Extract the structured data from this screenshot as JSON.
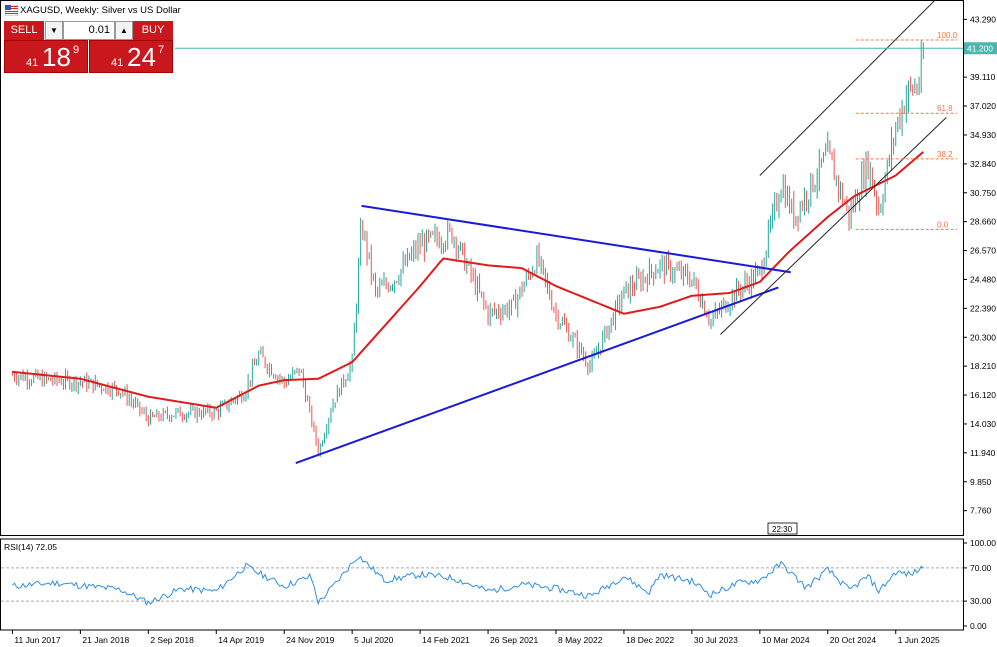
{
  "header": {
    "title": "XAGUSD, Weekly:  Silver vs US Dollar"
  },
  "trade_panel": {
    "sell_label": "SELL",
    "buy_label": "BUY",
    "lot_value": "0.01",
    "sell_price_big": "41",
    "sell_price_main": "18",
    "sell_price_sup": "9",
    "buy_price_big": "41",
    "buy_price_main": "24",
    "buy_price_sup": "7"
  },
  "colors": {
    "bull": "#26a69a",
    "bear": "#ef5350",
    "ma": "#e01b1b",
    "triangle": "#1a1ad8",
    "channel": "#222222",
    "fib": "#f07840",
    "current_price_line": "#4db6ac",
    "rsi": "#2f8fe0",
    "trade_red": "#c8171d"
  },
  "icons": {
    "flag": "flag-icon",
    "dropdown": "chevron-down-icon",
    "up": "chevron-up-icon"
  },
  "chart_data": {
    "type": "line",
    "timeframe": "Weekly",
    "symbol": "XAGUSD",
    "y_ticks": [
      "43.290",
      "41.200",
      "39.110",
      "37.020",
      "34.930",
      "32.840",
      "30.750",
      "28.660",
      "26.570",
      "24.480",
      "22.390",
      "20.300",
      "18.210",
      "16.120",
      "14.030",
      "11.940",
      "9.850",
      "7.760"
    ],
    "ylim": [
      6.0,
      44.4
    ],
    "current_price": "41.200",
    "time_label": "22:30",
    "x_ticks": [
      "11 Jun 2017",
      "21 Jan 2018",
      "2 Sep 2018",
      "14 Apr 2019",
      "24 Nov 2019",
      "5 Jul 2020",
      "14 Feb 2021",
      "26 Sep 2021",
      "8 May 2022",
      "18 Dec 2022",
      "30 Jul 2023",
      "10 Mar 2024",
      "20 Oct 2024",
      "1 Jun 2025"
    ],
    "price_path": [
      [
        "2017-06-11",
        17.6
      ],
      [
        "2017-10-01",
        17.2
      ],
      [
        "2018-01-21",
        17.1
      ],
      [
        "2018-06-01",
        16.5
      ],
      [
        "2018-09-02",
        14.4
      ],
      [
        "2018-12-01",
        14.8
      ],
      [
        "2019-04-14",
        14.9
      ],
      [
        "2019-07-15",
        16.3
      ],
      [
        "2019-09-01",
        19.0
      ],
      [
        "2019-11-24",
        17.0
      ],
      [
        "2020-01-15",
        18.0
      ],
      [
        "2020-03-16",
        12.0
      ],
      [
        "2020-05-01",
        15.5
      ],
      [
        "2020-07-05",
        18.5
      ],
      [
        "2020-08-05",
        28.5
      ],
      [
        "2020-09-20",
        23.5
      ],
      [
        "2020-11-20",
        24.5
      ],
      [
        "2021-02-14",
        27.0
      ],
      [
        "2021-06-01",
        27.8
      ],
      [
        "2021-09-26",
        22.0
      ],
      [
        "2021-12-15",
        22.5
      ],
      [
        "2022-03-07",
        26.0
      ],
      [
        "2022-05-08",
        22.0
      ],
      [
        "2022-08-30",
        18.2
      ],
      [
        "2022-12-18",
        23.5
      ],
      [
        "2023-04-15",
        25.5
      ],
      [
        "2023-07-30",
        24.5
      ],
      [
        "2023-10-01",
        21.5
      ],
      [
        "2023-12-20",
        23.5
      ],
      [
        "2024-03-10",
        25.0
      ],
      [
        "2024-05-20",
        31.5
      ],
      [
        "2024-07-01",
        29.0
      ],
      [
        "2024-10-20",
        33.5
      ],
      [
        "2024-12-30",
        29.0
      ],
      [
        "2025-03-01",
        33.0
      ],
      [
        "2025-04-07",
        29.5
      ],
      [
        "2025-06-01",
        35.5
      ],
      [
        "2025-07-10",
        38.0
      ],
      [
        "2025-08-15",
        38.5
      ],
      [
        "2025-09-05",
        41.2
      ]
    ],
    "ma_path": [
      [
        "2017-06-11",
        17.8
      ],
      [
        "2018-01-21",
        17.3
      ],
      [
        "2018-09-02",
        16.0
      ],
      [
        "2019-04-14",
        15.2
      ],
      [
        "2019-09-01",
        16.8
      ],
      [
        "2019-11-24",
        17.2
      ],
      [
        "2020-03-16",
        17.3
      ],
      [
        "2020-07-05",
        18.5
      ],
      [
        "2020-10-15",
        21.0
      ],
      [
        "2021-02-14",
        24.0
      ],
      [
        "2021-05-01",
        26.0
      ],
      [
        "2021-09-26",
        25.5
      ],
      [
        "2022-01-15",
        25.3
      ],
      [
        "2022-05-08",
        24.0
      ],
      [
        "2022-12-18",
        22.0
      ],
      [
        "2023-04-15",
        22.5
      ],
      [
        "2023-07-30",
        23.3
      ],
      [
        "2023-12-01",
        23.5
      ],
      [
        "2024-03-10",
        24.3
      ],
      [
        "2024-06-15",
        26.5
      ],
      [
        "2024-10-20",
        29.0
      ],
      [
        "2025-01-15",
        30.5
      ],
      [
        "2025-06-01",
        32.0
      ],
      [
        "2025-09-05",
        33.8
      ]
    ],
    "triangle_upper": [
      [
        "2020-08-05",
        29.8
      ],
      [
        "2024-06-20",
        25.0
      ]
    ],
    "triangle_lower": [
      [
        "2020-01-01",
        11.2
      ],
      [
        "2024-05-10",
        23.9
      ]
    ],
    "channel_upper": [
      [
        "2024-03-10",
        32.0
      ],
      [
        "2025-11-15",
        45.5
      ]
    ],
    "channel_lower": [
      [
        "2023-11-01",
        20.5
      ],
      [
        "2025-11-15",
        36.2
      ]
    ],
    "fibonacci": [
      {
        "label": "100.0",
        "value": 41.8
      },
      {
        "label": "61.8",
        "value": 36.5
      },
      {
        "label": "38.2",
        "value": 33.2
      },
      {
        "label": "0.0",
        "value": 28.1
      }
    ],
    "fib_range": [
      "2025-01-20",
      "2025-12-20"
    ],
    "x_range": [
      "2017-05-01",
      "2025-12-20"
    ],
    "rsi": {
      "label": "RSI(14) 72.05",
      "period": 14,
      "last": 72.05,
      "ylim": [
        0,
        100
      ],
      "y_ticks": [
        "100.00",
        "70.00",
        "30.00",
        "0.00"
      ],
      "levels": [
        70,
        30
      ],
      "path": [
        [
          "2017-06-11",
          48
        ],
        [
          "2017-11-01",
          52
        ],
        [
          "2018-06-01",
          44
        ],
        [
          "2018-09-02",
          28
        ],
        [
          "2018-12-20",
          45
        ],
        [
          "2019-04-14",
          42
        ],
        [
          "2019-07-20",
          72
        ],
        [
          "2019-11-24",
          48
        ],
        [
          "2020-02-20",
          60
        ],
        [
          "2020-03-16",
          28
        ],
        [
          "2020-05-20",
          55
        ],
        [
          "2020-07-25",
          85
        ],
        [
          "2020-10-20",
          55
        ],
        [
          "2021-02-14",
          62
        ],
        [
          "2021-06-01",
          58
        ],
        [
          "2021-09-26",
          42
        ],
        [
          "2022-01-20",
          50
        ],
        [
          "2022-05-08",
          45
        ],
        [
          "2022-08-30",
          36
        ],
        [
          "2022-12-18",
          60
        ],
        [
          "2023-03-10",
          40
        ],
        [
          "2023-04-15",
          62
        ],
        [
          "2023-07-30",
          54
        ],
        [
          "2023-10-01",
          38
        ],
        [
          "2024-01-01",
          52
        ],
        [
          "2024-03-10",
          55
        ],
        [
          "2024-05-20",
          75
        ],
        [
          "2024-08-10",
          46
        ],
        [
          "2024-10-20",
          68
        ],
        [
          "2024-12-30",
          43
        ],
        [
          "2025-03-01",
          60
        ],
        [
          "2025-04-07",
          42
        ],
        [
          "2025-06-01",
          65
        ],
        [
          "2025-07-20",
          62
        ],
        [
          "2025-09-05",
          72.05
        ]
      ]
    }
  }
}
